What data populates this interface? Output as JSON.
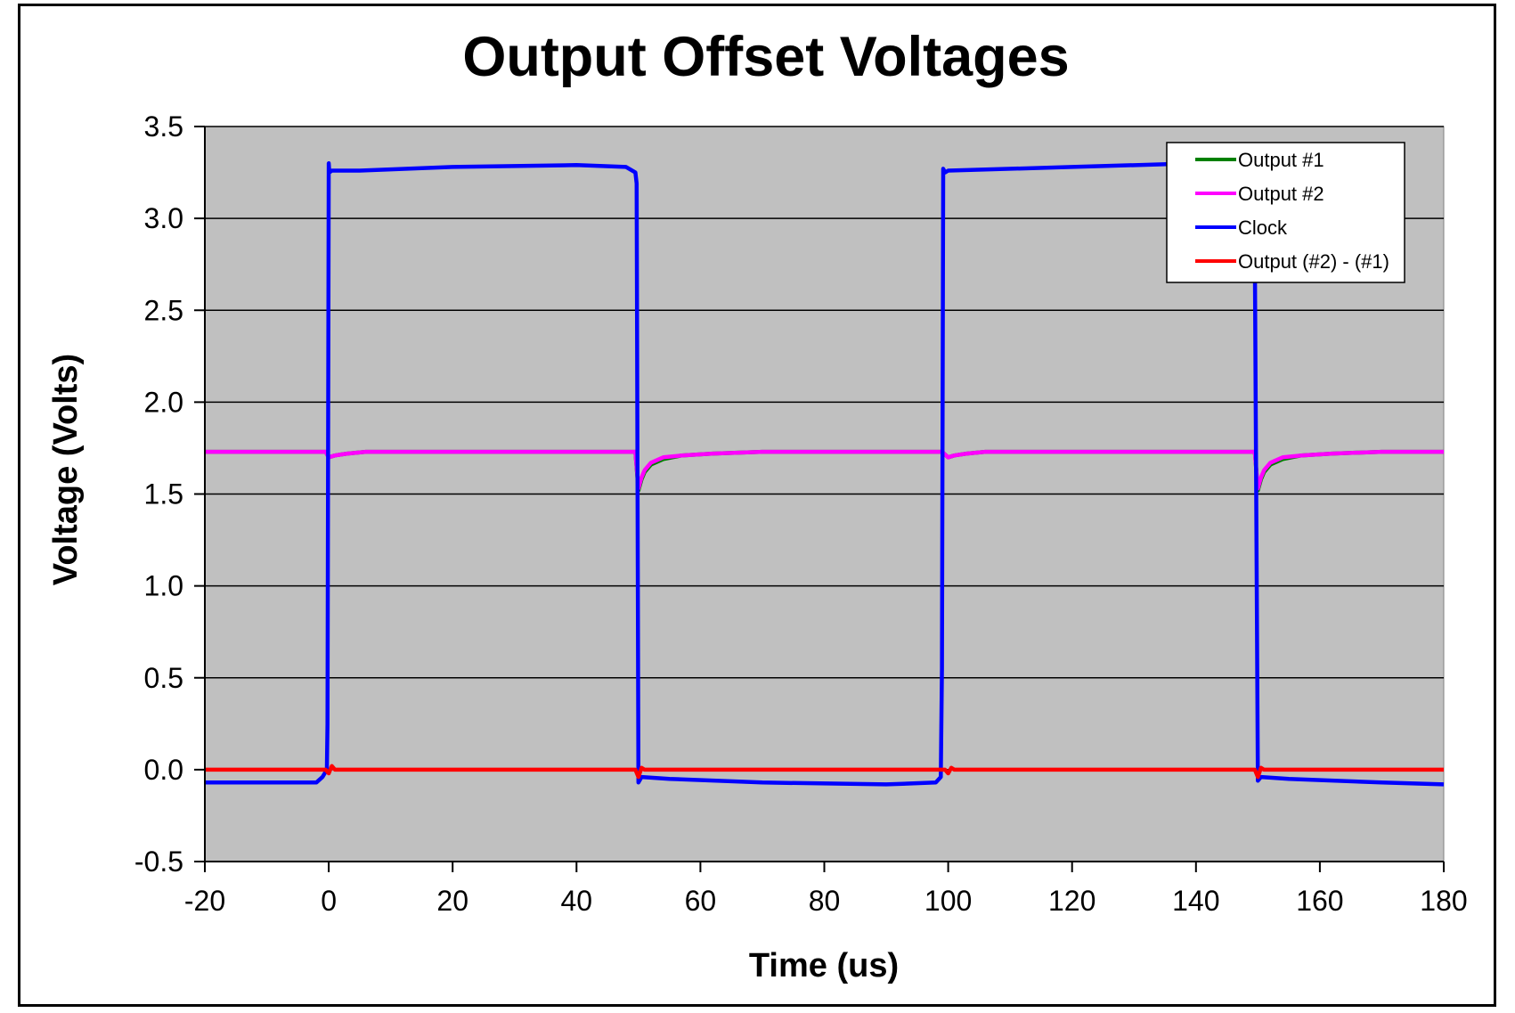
{
  "chart_data": {
    "type": "line",
    "title": "Output Offset Voltages",
    "xlabel": "Time (us)",
    "ylabel": "Voltage (Volts)",
    "xlim": [
      -20,
      180
    ],
    "ylim": [
      -0.5,
      3.5
    ],
    "xticks": [
      -20,
      0,
      20,
      40,
      60,
      80,
      100,
      120,
      140,
      160,
      180
    ],
    "xtick_labels": [
      "-20",
      "0",
      "20",
      "40",
      "60",
      "80",
      "100",
      "120",
      "140",
      "160",
      "180"
    ],
    "yticks": [
      -0.5,
      0.0,
      0.5,
      1.0,
      1.5,
      2.0,
      2.5,
      3.0,
      3.5
    ],
    "ytick_labels": [
      "-0.5",
      "0.0",
      "0.5",
      "1.0",
      "1.5",
      "2.0",
      "2.5",
      "3.0",
      "3.5"
    ],
    "grid": "horizontal",
    "plot_background": "#c0c0c0",
    "legend_position": "top-right",
    "series": [
      {
        "name": "Output #1",
        "color": "#008000",
        "x": [
          -20,
          -0.5,
          0,
          1,
          3,
          6,
          10,
          20,
          30,
          40,
          49.5,
          50,
          50.5,
          51,
          52,
          54,
          57,
          62,
          70,
          80,
          90,
          99,
          100,
          101,
          103,
          106,
          110,
          120,
          130,
          140,
          149.5,
          150,
          150.5,
          151,
          152,
          154,
          157,
          162,
          170,
          180
        ],
        "values": [
          1.73,
          1.73,
          1.7,
          1.71,
          1.72,
          1.73,
          1.73,
          1.73,
          1.73,
          1.73,
          1.73,
          1.52,
          1.58,
          1.62,
          1.66,
          1.69,
          1.71,
          1.72,
          1.73,
          1.73,
          1.73,
          1.73,
          1.7,
          1.71,
          1.72,
          1.73,
          1.73,
          1.73,
          1.73,
          1.73,
          1.73,
          1.52,
          1.58,
          1.62,
          1.66,
          1.69,
          1.71,
          1.72,
          1.73,
          1.73
        ]
      },
      {
        "name": "Output #2",
        "color": "#ff00ff",
        "x": [
          -20,
          -0.5,
          0,
          1,
          3,
          6,
          10,
          20,
          30,
          40,
          49.5,
          50,
          50.5,
          51,
          52,
          54,
          57,
          62,
          70,
          80,
          90,
          99,
          100,
          101,
          103,
          106,
          110,
          120,
          130,
          140,
          149.5,
          150,
          150.5,
          151,
          152,
          154,
          157,
          162,
          170,
          180
        ],
        "values": [
          1.73,
          1.73,
          1.7,
          1.71,
          1.72,
          1.73,
          1.73,
          1.73,
          1.73,
          1.73,
          1.73,
          1.53,
          1.59,
          1.63,
          1.67,
          1.7,
          1.71,
          1.72,
          1.73,
          1.73,
          1.73,
          1.73,
          1.7,
          1.71,
          1.72,
          1.73,
          1.73,
          1.73,
          1.73,
          1.73,
          1.73,
          1.53,
          1.59,
          1.63,
          1.67,
          1.7,
          1.71,
          1.72,
          1.73,
          1.73
        ]
      },
      {
        "name": "Clock",
        "color": "#0000ff",
        "x": [
          -20,
          -10,
          -2,
          -1,
          -0.3,
          -0.2,
          0,
          0.1,
          0.5,
          5,
          20,
          40,
          48,
          49.5,
          49.7,
          50,
          50.5,
          55,
          70,
          90,
          98,
          98.8,
          99,
          99.2,
          99.5,
          100,
          120,
          140,
          148,
          149.3,
          149.5,
          150,
          150.5,
          155,
          170,
          180
        ],
        "values": [
          -0.07,
          -0.07,
          -0.07,
          -0.04,
          0.0,
          0.25,
          3.3,
          3.25,
          3.26,
          3.26,
          3.28,
          3.29,
          3.28,
          3.25,
          3.19,
          -0.07,
          -0.04,
          -0.05,
          -0.07,
          -0.08,
          -0.07,
          -0.04,
          0.55,
          3.27,
          3.25,
          3.26,
          3.28,
          3.3,
          3.29,
          3.25,
          2.8,
          -0.06,
          -0.04,
          -0.05,
          -0.07,
          -0.08
        ]
      },
      {
        "name": "Output (#2) - (#1)",
        "color": "#ff0000",
        "x": [
          -20,
          -0.5,
          0,
          0.5,
          1,
          49.5,
          50,
          50.5,
          51,
          99.5,
          100,
          100.5,
          101,
          149.5,
          150,
          150.5,
          151,
          180
        ],
        "values": [
          0.0,
          0.0,
          -0.02,
          0.02,
          0.0,
          0.0,
          -0.04,
          0.01,
          0.0,
          0.0,
          -0.02,
          0.01,
          0.0,
          0.0,
          -0.04,
          0.01,
          0.0,
          0.0
        ]
      }
    ]
  }
}
